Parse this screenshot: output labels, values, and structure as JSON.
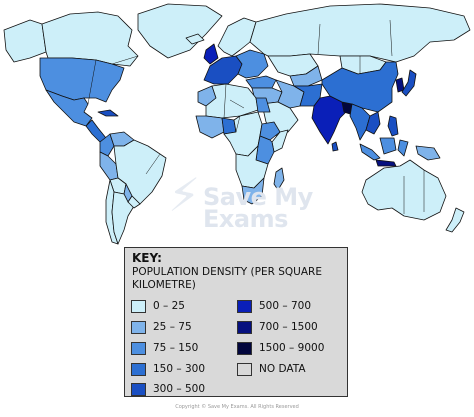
{
  "key": {
    "title": "KEY:",
    "subtitle": "POPULATION DENSITY (PER SQUARE KILOMETRE)",
    "categories": [
      {
        "label": "0 – 25",
        "color": "#cdeff9"
      },
      {
        "label": "25 – 75",
        "color": "#7fb3ea"
      },
      {
        "label": "75 – 150",
        "color": "#4d8fe0"
      },
      {
        "label": "150 – 300",
        "color": "#2c6fd2"
      },
      {
        "label": "300 – 500",
        "color": "#1a4fc2"
      },
      {
        "label": "500 – 700",
        "color": "#0a1fb8"
      },
      {
        "label": "700 – 1500",
        "color": "#06107f"
      },
      {
        "label": "1500 – 9000",
        "color": "#02063d"
      },
      {
        "label": "NO DATA",
        "color": "#d9d9d9"
      }
    ]
  },
  "watermark": {
    "line1": "Save My",
    "line2": "Exams"
  },
  "copyright": "Copyright © Save My Exams. All Rights Reserved",
  "regions": [
    {
      "id": "greenland",
      "cat": 0
    },
    {
      "id": "canada",
      "cat": 0
    },
    {
      "id": "alaska",
      "cat": 0
    },
    {
      "id": "usa",
      "cat": 2
    },
    {
      "id": "mexico",
      "cat": 2
    },
    {
      "id": "central-america",
      "cat": 3
    },
    {
      "id": "cuba",
      "cat": 4
    },
    {
      "id": "colombia",
      "cat": 2
    },
    {
      "id": "venezuela",
      "cat": 1
    },
    {
      "id": "brazil",
      "cat": 0
    },
    {
      "id": "peru",
      "cat": 1
    },
    {
      "id": "bolivia",
      "cat": 0
    },
    {
      "id": "paraguay",
      "cat": 1
    },
    {
      "id": "argentina",
      "cat": 0
    },
    {
      "id": "chile",
      "cat": 0
    },
    {
      "id": "uruguay",
      "cat": 0
    },
    {
      "id": "iceland",
      "cat": 0
    },
    {
      "id": "uk",
      "cat": 5
    },
    {
      "id": "scandinavia",
      "cat": 0
    },
    {
      "id": "western-europe",
      "cat": 4
    },
    {
      "id": "eastern-europe",
      "cat": 2
    },
    {
      "id": "russia",
      "cat": 0
    },
    {
      "id": "kazakhstan",
      "cat": 0
    },
    {
      "id": "central-asia",
      "cat": 1
    },
    {
      "id": "turkey",
      "cat": 2
    },
    {
      "id": "middle-east",
      "cat": 1
    },
    {
      "id": "arabia",
      "cat": 0
    },
    {
      "id": "iran",
      "cat": 1
    },
    {
      "id": "afghanistan-pakistan",
      "cat": 3
    },
    {
      "id": "india",
      "cat": 5
    },
    {
      "id": "bangladesh",
      "cat": 7
    },
    {
      "id": "sri-lanka",
      "cat": 4
    },
    {
      "id": "mongolia",
      "cat": 0
    },
    {
      "id": "china",
      "cat": 3
    },
    {
      "id": "korea",
      "cat": 6
    },
    {
      "id": "japan",
      "cat": 4
    },
    {
      "id": "southeast-asia",
      "cat": 3
    },
    {
      "id": "vietnam",
      "cat": 4
    },
    {
      "id": "philippines",
      "cat": 4
    },
    {
      "id": "indonesia",
      "cat": 2
    },
    {
      "id": "java",
      "cat": 6
    },
    {
      "id": "png",
      "cat": 1
    },
    {
      "id": "australia",
      "cat": 0
    },
    {
      "id": "new-zealand",
      "cat": 0
    },
    {
      "id": "north-africa",
      "cat": 0
    },
    {
      "id": "morocco",
      "cat": 1
    },
    {
      "id": "west-africa",
      "cat": 1
    },
    {
      "id": "nigeria",
      "cat": 3
    },
    {
      "id": "egypt",
      "cat": 2
    },
    {
      "id": "central-africa",
      "cat": 0
    },
    {
      "id": "east-africa",
      "cat": 2
    },
    {
      "id": "ethiopia",
      "cat": 2
    },
    {
      "id": "somalia",
      "cat": 0
    },
    {
      "id": "southern-africa",
      "cat": 0
    },
    {
      "id": "south-africa",
      "cat": 1
    },
    {
      "id": "madagascar",
      "cat": 1
    }
  ]
}
